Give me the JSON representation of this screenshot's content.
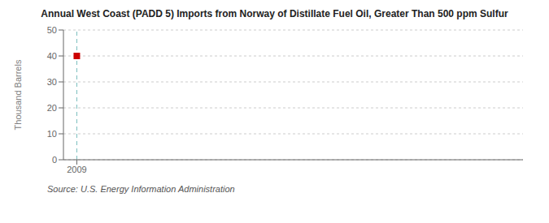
{
  "chart_data": {
    "type": "scatter",
    "title": "Annual West Coast (PADD 5) Imports from Norway of Distillate Fuel Oil, Greater Than 500 ppm Sulfur",
    "y_label": "Thousand Barrels",
    "source": "Source: U.S. Energy Information Administration",
    "x": [
      2009
    ],
    "values": [
      40
    ],
    "color": "#cc0000",
    "marker": "square",
    "xlim": [
      2008.7,
      2019
    ],
    "xticks": [
      2009
    ],
    "ylim": [
      0,
      50
    ],
    "yticks": [
      0,
      10,
      20,
      30,
      40,
      50
    ],
    "grid": true,
    "reference_lines": [
      {
        "x": 2009,
        "color": "#7bbfbf",
        "line_style": "dashed"
      }
    ]
  }
}
